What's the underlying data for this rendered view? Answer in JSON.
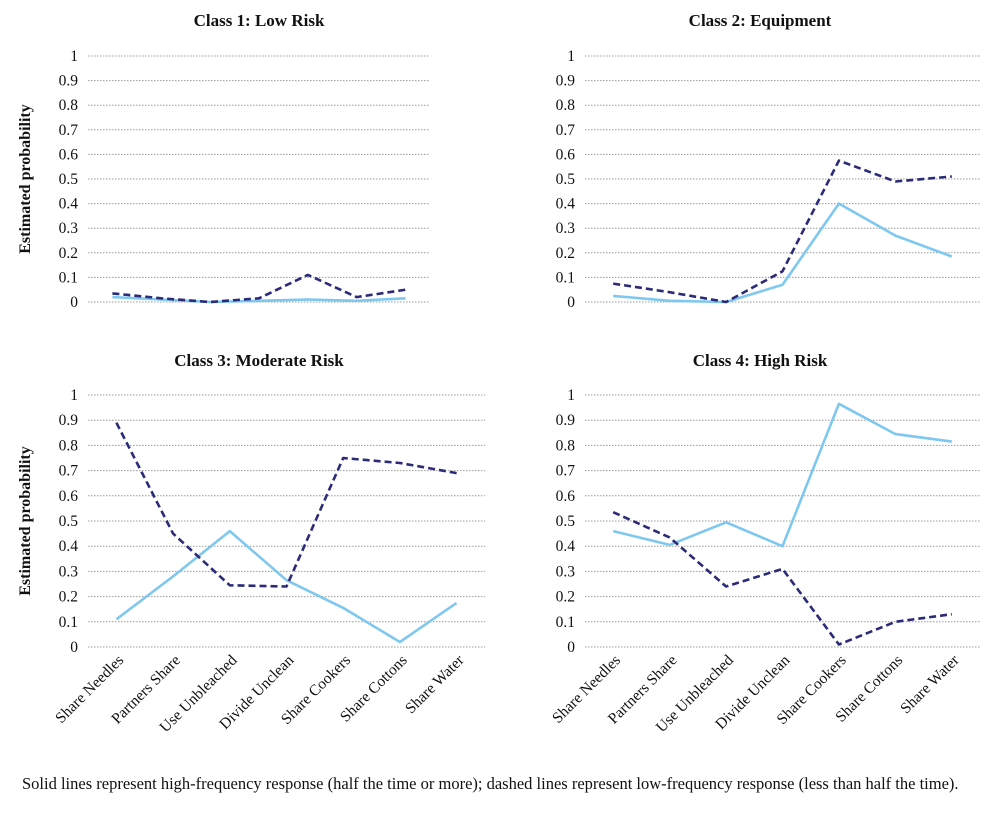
{
  "y_axis_label": "Estimated probability",
  "caption": "Solid lines represent high-frequency response (half the time or more); dashed lines represent low-frequency response (less than half the time).",
  "colors": {
    "solid": "#7ec8ef",
    "dashed": "#2b2b7a",
    "grid": "#9a9a9a"
  },
  "chart_data": [
    {
      "type": "line",
      "title": "Class 1: Low Risk",
      "categories": [
        "Share Needles",
        "Partners Share",
        "Use Unbleached",
        "Divide Unclean",
        "Share Cookers",
        "Share Cottons",
        "Share Water"
      ],
      "ylim": [
        0,
        1
      ],
      "yticks": [
        "0",
        "0.1",
        "0.2",
        "0.3",
        "0.4",
        "0.5",
        "0.6",
        "0.7",
        "0.8",
        "0.9",
        "1"
      ],
      "grid": true,
      "series": [
        {
          "style": "solid",
          "values": [
            0.02,
            0.01,
            0.0,
            0.005,
            0.01,
            0.005,
            0.015
          ]
        },
        {
          "style": "dashed",
          "values": [
            0.035,
            0.015,
            0.0,
            0.015,
            0.11,
            0.02,
            0.05
          ]
        }
      ]
    },
    {
      "type": "line",
      "title": "Class 2: Equipment",
      "categories": [
        "Share Needles",
        "Partners Share",
        "Use Unbleached",
        "Divide Unclean",
        "Share Cookers",
        "Share Cottons",
        "Share Water"
      ],
      "ylim": [
        0,
        1
      ],
      "yticks": [
        "0",
        "0.1",
        "0.2",
        "0.3",
        "0.4",
        "0.5",
        "0.6",
        "0.7",
        "0.8",
        "0.9",
        "1"
      ],
      "grid": true,
      "series": [
        {
          "style": "solid",
          "values": [
            0.025,
            0.005,
            0.0,
            0.07,
            0.4,
            0.27,
            0.185
          ]
        },
        {
          "style": "dashed",
          "values": [
            0.075,
            0.04,
            0.0,
            0.125,
            0.575,
            0.49,
            0.51
          ]
        }
      ]
    },
    {
      "type": "line",
      "title": "Class 3: Moderate Risk",
      "categories": [
        "Share Needles",
        "Partners Share",
        "Use Unbleached",
        "Divide Unclean",
        "Share Cookers",
        "Share Cottons",
        "Share Water"
      ],
      "ylim": [
        0,
        1
      ],
      "yticks": [
        "0",
        "0.1",
        "0.2",
        "0.3",
        "0.4",
        "0.5",
        "0.6",
        "0.7",
        "0.8",
        "0.9",
        "1"
      ],
      "grid": true,
      "series": [
        {
          "style": "solid",
          "values": [
            0.11,
            0.28,
            0.46,
            0.265,
            0.155,
            0.02,
            0.175
          ]
        },
        {
          "style": "dashed",
          "values": [
            0.89,
            0.45,
            0.245,
            0.24,
            0.75,
            0.73,
            0.69
          ]
        }
      ]
    },
    {
      "type": "line",
      "title": "Class 4: High Risk",
      "categories": [
        "Share Needles",
        "Partners Share",
        "Use Unbleached",
        "Divide Unclean",
        "Share Cookers",
        "Share Cottons",
        "Share Water"
      ],
      "ylim": [
        0,
        1
      ],
      "yticks": [
        "0",
        "0.1",
        "0.2",
        "0.3",
        "0.4",
        "0.5",
        "0.6",
        "0.7",
        "0.8",
        "0.9",
        "1"
      ],
      "grid": true,
      "series": [
        {
          "style": "solid",
          "values": [
            0.46,
            0.405,
            0.495,
            0.4,
            0.965,
            0.845,
            0.815
          ]
        },
        {
          "style": "dashed",
          "values": [
            0.535,
            0.435,
            0.24,
            0.31,
            0.01,
            0.1,
            0.13
          ]
        }
      ]
    }
  ]
}
